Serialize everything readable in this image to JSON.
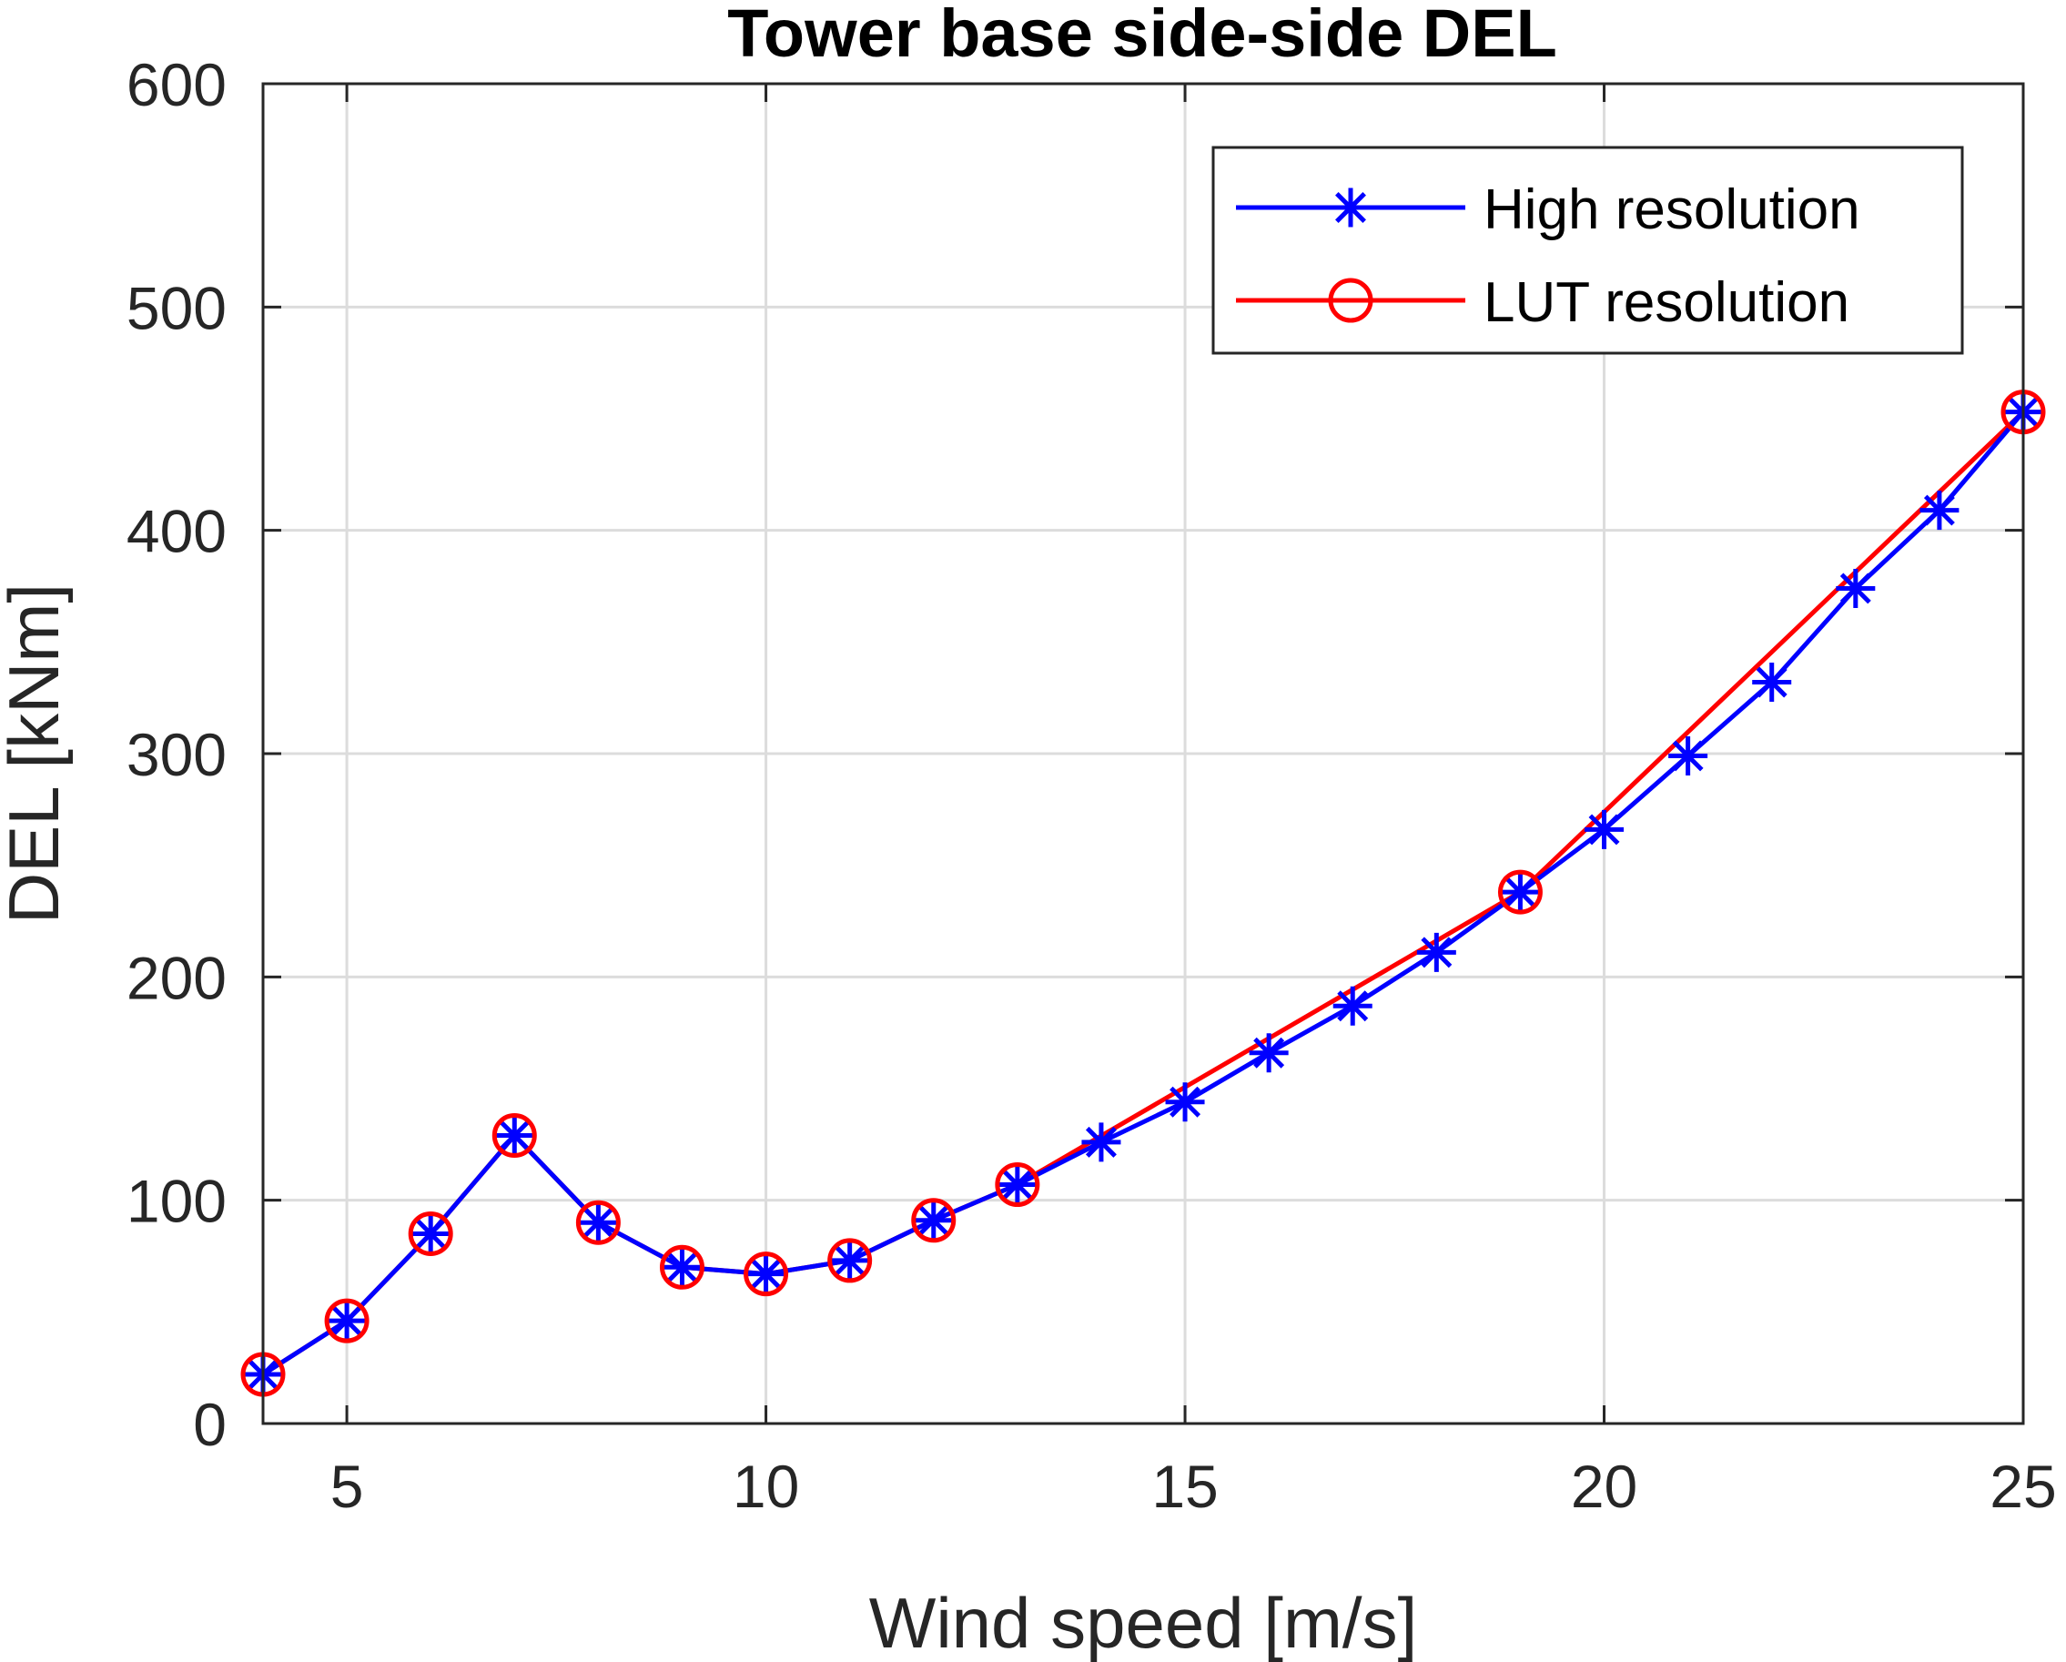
{
  "chart_data": {
    "type": "line",
    "title": "Tower base side-side DEL",
    "xlabel": "Wind speed [m/s]",
    "ylabel": "DEL [kNm]",
    "xlim": [
      4,
      25
    ],
    "ylim": [
      0,
      600
    ],
    "xticks": [
      5,
      10,
      15,
      20,
      25
    ],
    "yticks": [
      0,
      100,
      200,
      300,
      400,
      500,
      600
    ],
    "grid": true,
    "legend_position": "top-right",
    "series": [
      {
        "name": "High resolution",
        "color": "#0000ff",
        "marker": "asterisk",
        "x": [
          4,
          5,
          6,
          7,
          8,
          9,
          10,
          11,
          12,
          13,
          14,
          15,
          16,
          17,
          18,
          19,
          20,
          21,
          22,
          23,
          24,
          25
        ],
        "y": [
          22,
          46,
          85,
          129,
          90,
          70,
          67,
          73,
          91,
          107,
          126,
          144,
          166,
          187,
          211,
          238,
          266,
          299,
          332,
          374,
          409,
          453
        ]
      },
      {
        "name": "LUT resolution",
        "color": "#ff0000",
        "marker": "circle",
        "x": [
          4,
          5,
          6,
          7,
          8,
          9,
          10,
          11,
          12,
          13,
          19,
          25
        ],
        "y": [
          22,
          46,
          85,
          129,
          90,
          70,
          67,
          73,
          91,
          107,
          238,
          453
        ]
      }
    ]
  }
}
